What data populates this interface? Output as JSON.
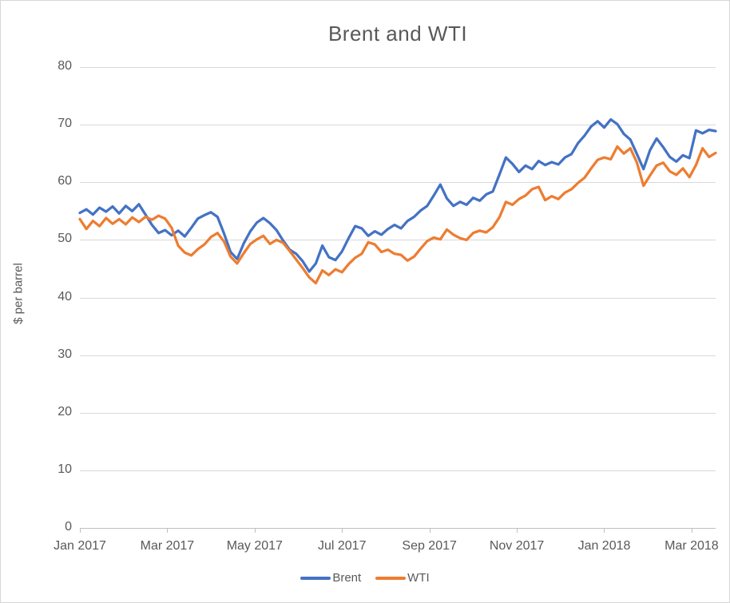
{
  "chart": {
    "title": "Brent and WTI",
    "y_axis": {
      "label": "$ per barrel"
    },
    "legend": {
      "brent_label": "Brent",
      "wti_label": "WTI"
    },
    "colors": {
      "brent": "#4472C4",
      "wti": "#ED7D31",
      "text": "#595959",
      "gridline": "#D9D9D9",
      "axis_line": "#BFBFBF"
    }
  },
  "chart_data": {
    "type": "line",
    "title": "Brent and WTI",
    "xlabel": "",
    "ylabel": "$ per barrel",
    "ylim": [
      0,
      80
    ],
    "y_tick_step": 10,
    "y_tick_labels": [
      "0",
      "10",
      "20",
      "30",
      "40",
      "50",
      "60",
      "70",
      "80"
    ],
    "x_tick_labels": [
      "Jan 2017",
      "Mar 2017",
      "May 2017",
      "Jul 2017",
      "Sep 2017",
      "Nov 2017",
      "Jan 2018",
      "Mar 2018"
    ],
    "x_tick_months": [
      0,
      2,
      4,
      6,
      8,
      10,
      12,
      14
    ],
    "x_start_month": 0,
    "x_step_months": 0.15,
    "x_total_months": 14.55,
    "x_unit": "months since 1 Jan 2017 (one value every 0.15 month)",
    "grid": "horizontal",
    "legend_position": "bottom",
    "series": [
      {
        "name": "Brent",
        "color": "#4472C4",
        "values": [
          54.7,
          55.3,
          54.4,
          55.6,
          54.9,
          55.8,
          54.6,
          55.9,
          55.0,
          56.2,
          54.4,
          52.6,
          51.2,
          51.7,
          50.8,
          51.6,
          50.6,
          52.1,
          53.7,
          54.3,
          54.8,
          54.0,
          51.1,
          47.9,
          46.7,
          49.4,
          51.5,
          53.0,
          53.8,
          52.9,
          51.7,
          49.9,
          48.3,
          47.6,
          46.3,
          44.5,
          45.9,
          49.0,
          47.0,
          46.5,
          48.0,
          50.3,
          52.4,
          52.0,
          50.7,
          51.5,
          50.9,
          51.9,
          52.6,
          52.0,
          53.3,
          54.0,
          55.1,
          55.9,
          57.7,
          59.6,
          57.2,
          55.9,
          56.6,
          56.1,
          57.3,
          56.8,
          57.9,
          58.4,
          61.3,
          64.3,
          63.2,
          61.8,
          62.9,
          62.3,
          63.7,
          63.0,
          63.5,
          63.1,
          64.3,
          64.9,
          66.8,
          68.1,
          69.7,
          70.6,
          69.5,
          70.9,
          70.1,
          68.4,
          67.4,
          64.9,
          62.3,
          65.6,
          67.6,
          66.1,
          64.4,
          63.6,
          64.7,
          64.2,
          69.0,
          68.5,
          69.1,
          68.9
        ]
      },
      {
        "name": "WTI",
        "color": "#ED7D31",
        "values": [
          53.6,
          51.9,
          53.3,
          52.4,
          53.8,
          52.8,
          53.6,
          52.7,
          53.9,
          53.1,
          54.0,
          53.5,
          54.2,
          53.7,
          52.1,
          49.0,
          47.8,
          47.3,
          48.4,
          49.2,
          50.5,
          51.2,
          49.7,
          47.1,
          45.9,
          47.7,
          49.3,
          50.1,
          50.7,
          49.3,
          50.0,
          49.5,
          48.1,
          46.6,
          45.1,
          43.5,
          42.5,
          44.7,
          43.9,
          44.9,
          44.4,
          45.8,
          46.9,
          47.6,
          49.6,
          49.2,
          47.9,
          48.3,
          47.6,
          47.4,
          46.4,
          47.1,
          48.5,
          49.8,
          50.4,
          50.1,
          51.8,
          50.9,
          50.3,
          50.0,
          51.2,
          51.6,
          51.3,
          52.2,
          53.9,
          56.6,
          56.1,
          57.1,
          57.7,
          58.8,
          59.2,
          56.9,
          57.6,
          57.1,
          58.2,
          58.8,
          59.9,
          60.8,
          62.4,
          63.9,
          64.3,
          64.0,
          66.2,
          65.0,
          65.9,
          63.4,
          59.4,
          61.2,
          62.9,
          63.4,
          61.9,
          61.3,
          62.4,
          60.9,
          63.0,
          65.9,
          64.4,
          65.1
        ]
      }
    ]
  }
}
